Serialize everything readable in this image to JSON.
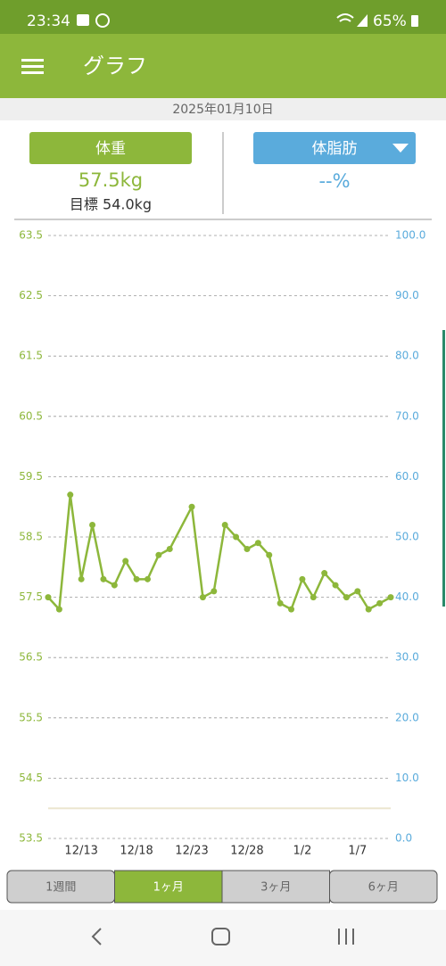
{
  "status_bar": {
    "time": "23:34",
    "battery": "65%"
  },
  "app_bar": {
    "title": "グラフ"
  },
  "date": "2025年01月10日",
  "weight_panel": {
    "button": "体重",
    "value": "57.5kg",
    "goal": "目標 54.0kg"
  },
  "fat_panel": {
    "button": "体脂肪",
    "value": "--%"
  },
  "chart_data": {
    "type": "line",
    "x": [
      "12/10",
      "12/11",
      "12/12",
      "12/13",
      "12/14",
      "12/15",
      "12/16",
      "12/17",
      "12/18",
      "12/19",
      "12/20",
      "12/21",
      "12/23",
      "12/24",
      "12/25",
      "12/26",
      "12/27",
      "12/28",
      "12/29",
      "12/30",
      "12/31",
      "1/1",
      "1/2",
      "1/3",
      "1/4",
      "1/5",
      "1/6",
      "1/7",
      "1/8",
      "1/9",
      "1/10"
    ],
    "series": [
      {
        "name": "体重",
        "color": "#8db73b",
        "values": [
          57.5,
          57.3,
          59.2,
          57.8,
          58.7,
          57.8,
          57.7,
          58.1,
          57.8,
          57.8,
          58.2,
          58.3,
          59.0,
          57.5,
          57.6,
          58.7,
          58.5,
          58.3,
          58.4,
          58.2,
          57.4,
          57.3,
          57.8,
          57.5,
          57.9,
          57.7,
          57.5,
          57.6,
          57.3,
          57.4,
          57.5
        ]
      }
    ],
    "target": 54.0,
    "target_color": "#ece6cf",
    "xticks": [
      "12/13",
      "12/18",
      "12/23",
      "12/28",
      "1/2",
      "1/7"
    ],
    "ylim": [
      53.5,
      63.5
    ],
    "yticks": [
      53.5,
      54.5,
      55.5,
      56.5,
      57.5,
      58.5,
      59.5,
      60.5,
      61.5,
      62.5,
      63.5
    ],
    "y2lim": [
      0,
      100
    ],
    "y2ticks": [
      {
        "value": 0,
        "label": "0.0"
      },
      {
        "value": 10,
        "label": "10.0"
      },
      {
        "value": 20,
        "label": "20.0"
      },
      {
        "value": 30,
        "label": "30.0"
      },
      {
        "value": 40,
        "label": "40.0"
      },
      {
        "value": 50,
        "label": "50.0"
      },
      {
        "value": 60,
        "label": "60.0"
      },
      {
        "value": 70,
        "label": "70.0"
      },
      {
        "value": 80,
        "label": "80.0"
      },
      {
        "value": 90,
        "label": "90.0"
      },
      {
        "value": 100,
        "label": "100.0"
      }
    ],
    "y2color": "#5aabdc",
    "grid": true
  },
  "tabs": [
    "1週間",
    "1ヶ月",
    "3ヶ月",
    "6ヶ月"
  ]
}
